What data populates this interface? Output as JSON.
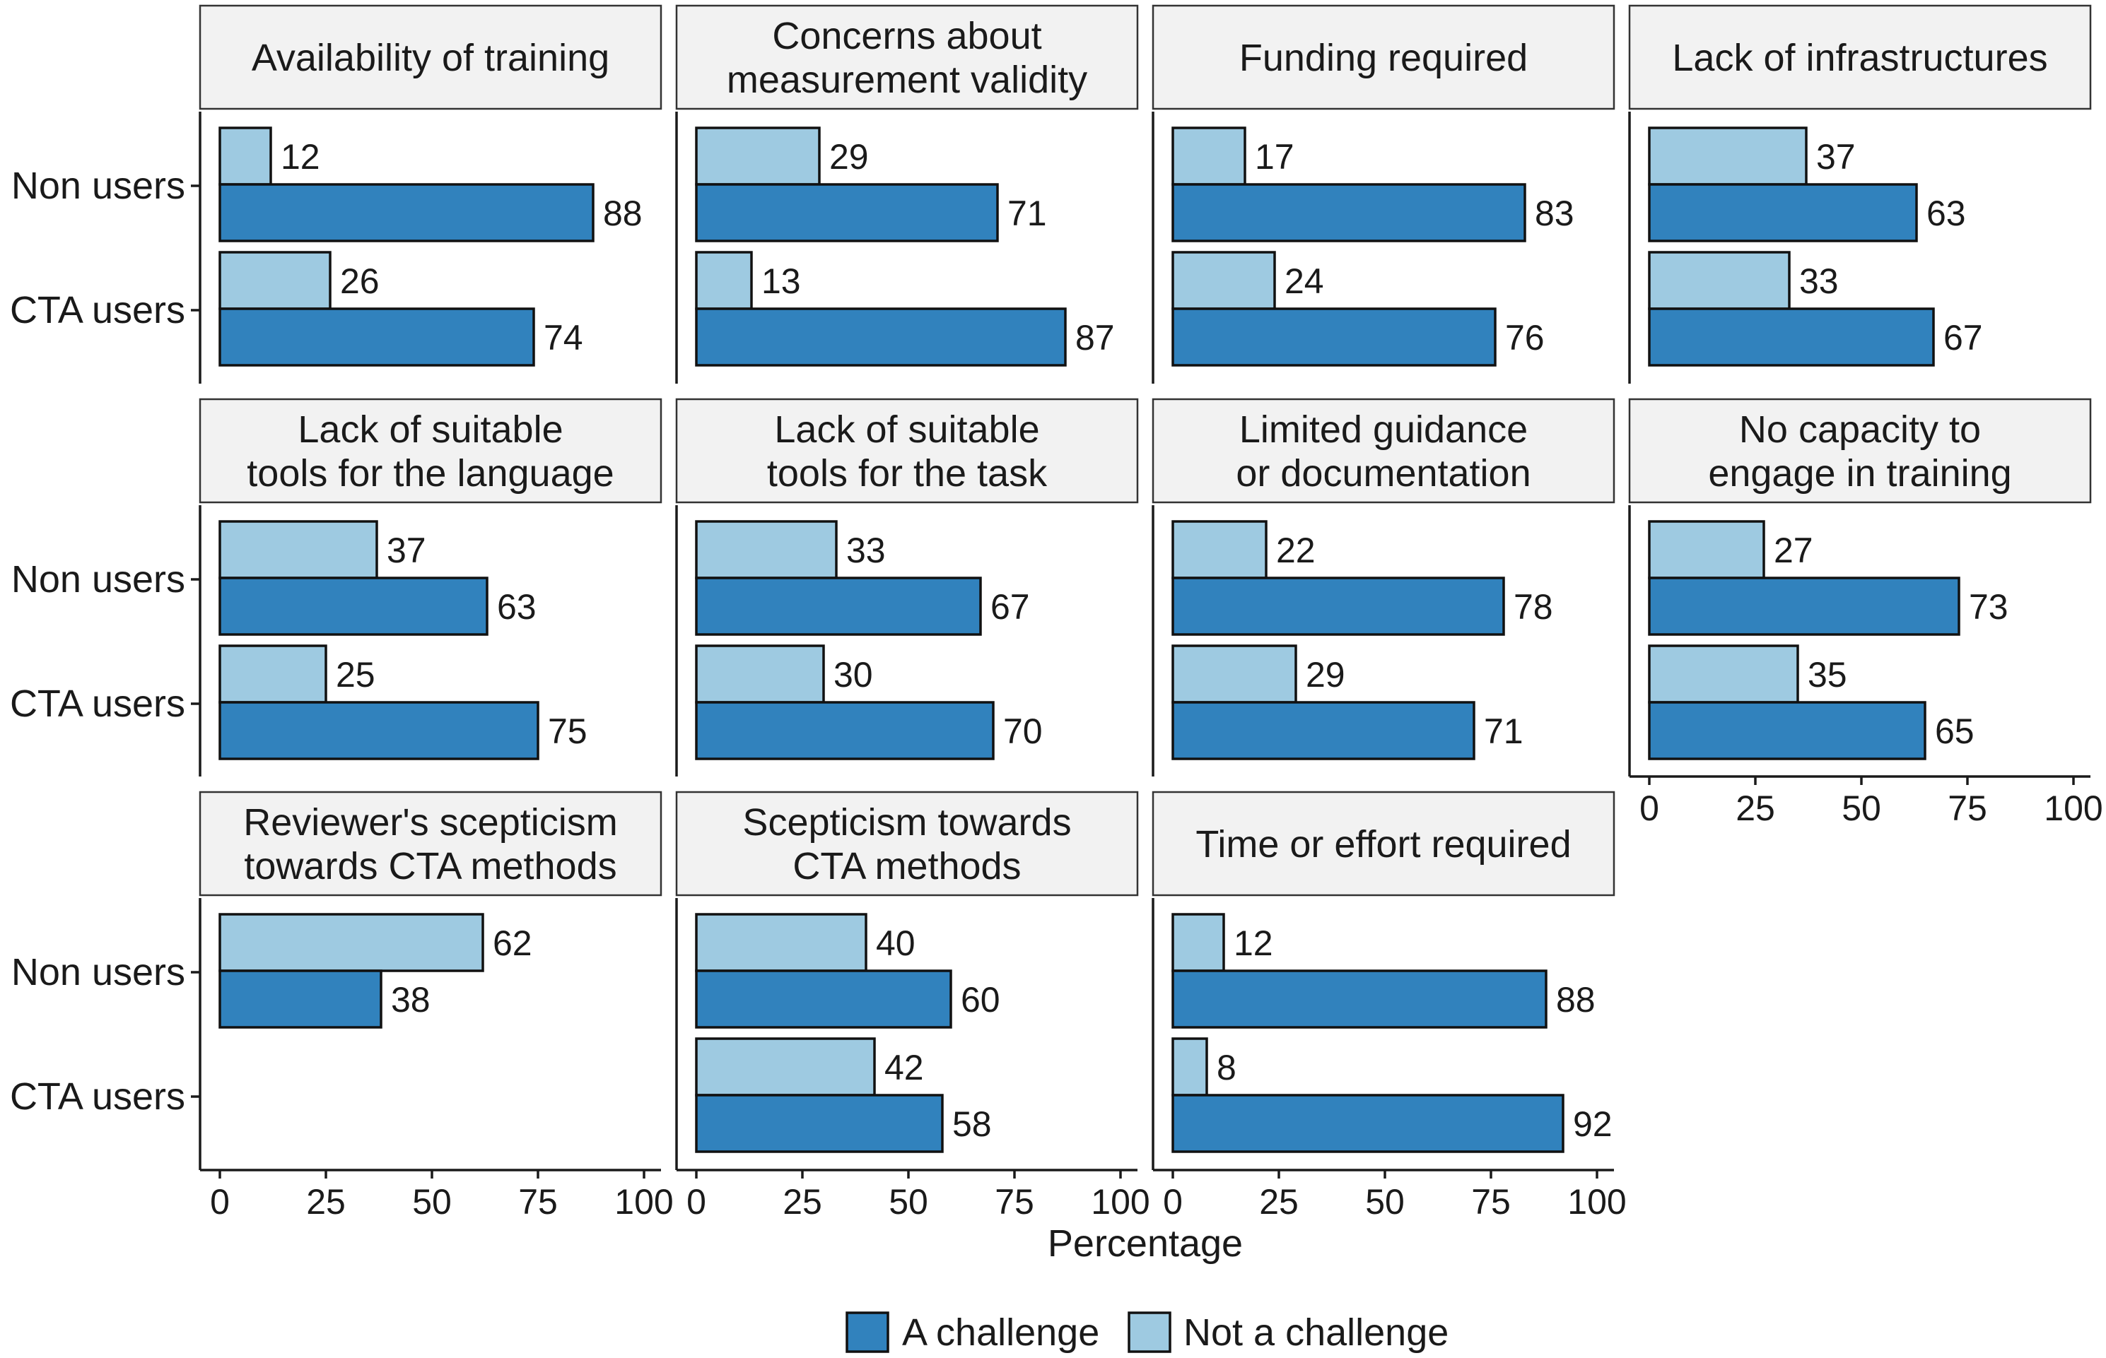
{
  "chart_data": {
    "type": "bar",
    "orientation": "horizontal",
    "xlabel": "Percentage",
    "xlim": [
      0,
      100
    ],
    "xticks": [
      0,
      25,
      50,
      75,
      100
    ],
    "groups": [
      "Non users",
      "CTA users"
    ],
    "series": [
      {
        "name": "A challenge",
        "color": "#3182bd"
      },
      {
        "name": "Not a challenge",
        "color": "#9ecae1"
      }
    ],
    "legend": {
      "position": "bottom",
      "items": [
        "A challenge",
        "Not a challenge"
      ]
    },
    "panels": [
      {
        "title": [
          "Availability of training"
        ],
        "non_users": {
          "a_challenge": 88,
          "not_a_challenge": 12
        },
        "cta_users": {
          "a_challenge": 74,
          "not_a_challenge": 26
        }
      },
      {
        "title": [
          "Concerns about",
          "measurement validity"
        ],
        "non_users": {
          "a_challenge": 71,
          "not_a_challenge": 29
        },
        "cta_users": {
          "a_challenge": 87,
          "not_a_challenge": 13
        }
      },
      {
        "title": [
          "Funding required"
        ],
        "non_users": {
          "a_challenge": 83,
          "not_a_challenge": 17
        },
        "cta_users": {
          "a_challenge": 76,
          "not_a_challenge": 24
        }
      },
      {
        "title": [
          "Lack of infrastructures"
        ],
        "non_users": {
          "a_challenge": 63,
          "not_a_challenge": 37
        },
        "cta_users": {
          "a_challenge": 67,
          "not_a_challenge": 33
        }
      },
      {
        "title": [
          "Lack of suitable",
          "tools for the language"
        ],
        "non_users": {
          "a_challenge": 63,
          "not_a_challenge": 37
        },
        "cta_users": {
          "a_challenge": 75,
          "not_a_challenge": 25
        }
      },
      {
        "title": [
          "Lack of suitable",
          "tools for the task"
        ],
        "non_users": {
          "a_challenge": 67,
          "not_a_challenge": 33
        },
        "cta_users": {
          "a_challenge": 70,
          "not_a_challenge": 30
        }
      },
      {
        "title": [
          "Limited guidance",
          "or documentation"
        ],
        "non_users": {
          "a_challenge": 78,
          "not_a_challenge": 22
        },
        "cta_users": {
          "a_challenge": 71,
          "not_a_challenge": 29
        }
      },
      {
        "title": [
          "No capacity to",
          "engage in training"
        ],
        "non_users": {
          "a_challenge": 73,
          "not_a_challenge": 27
        },
        "cta_users": {
          "a_challenge": 65,
          "not_a_challenge": 35
        }
      },
      {
        "title": [
          "Reviewer's scepticism",
          "towards CTA methods"
        ],
        "non_users": {
          "a_challenge": 38,
          "not_a_challenge": 62
        },
        "cta_users": null
      },
      {
        "title": [
          "Scepticism towards",
          "CTA methods"
        ],
        "non_users": {
          "a_challenge": 60,
          "not_a_challenge": 40
        },
        "cta_users": {
          "a_challenge": 58,
          "not_a_challenge": 42
        }
      },
      {
        "title": [
          "Time or effort required"
        ],
        "non_users": {
          "a_challenge": 88,
          "not_a_challenge": 12
        },
        "cta_users": {
          "a_challenge": 92,
          "not_a_challenge": 8
        }
      }
    ]
  }
}
